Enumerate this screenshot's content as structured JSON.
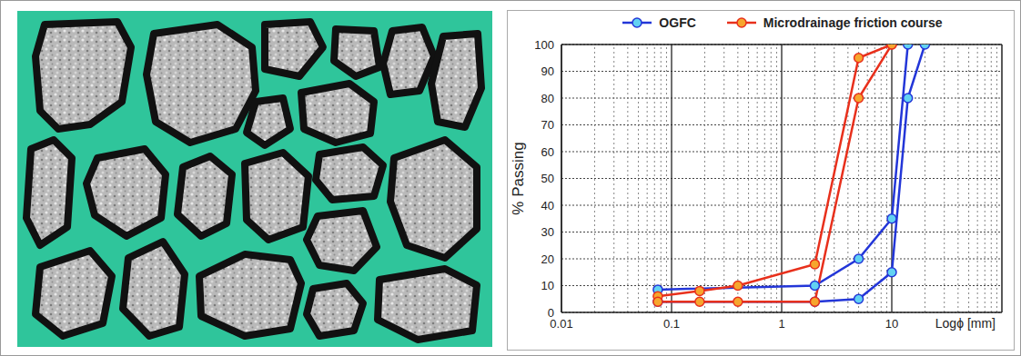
{
  "chart_data": {
    "type": "line",
    "y_label": "% Passing",
    "x_label": "Logϕ [mm]",
    "log": "x",
    "grid": true,
    "legend": "top",
    "xlim": [
      0.01,
      100
    ],
    "xticks": [
      0.01,
      0.1,
      1,
      10
    ],
    "ylim": [
      0,
      100
    ],
    "yticks": [
      0,
      10,
      20,
      30,
      40,
      50,
      60,
      70,
      80,
      90,
      100
    ],
    "series": [
      {
        "name": "OGFC",
        "color": "#2336d8",
        "marker": "circle",
        "curves": [
          {
            "x": [
              0.075,
              2,
              5,
              10,
              14
            ],
            "values": [
              8.5,
              10,
              20,
              35,
              100
            ]
          },
          {
            "x": [
              0.075,
              2,
              5,
              10,
              14,
              20
            ],
            "values": [
              4,
              4,
              5,
              15,
              80,
              100
            ]
          }
        ]
      },
      {
        "name": "Microdrainage friction course",
        "color": "#e8301c",
        "marker": "circle",
        "curves": [
          {
            "x": [
              0.075,
              0.18,
              0.4,
              2,
              5,
              10
            ],
            "values": [
              6,
              8,
              10,
              18,
              95,
              100
            ]
          },
          {
            "x": [
              0.075,
              0.18,
              0.4,
              2,
              5,
              10
            ],
            "values": [
              4,
              4,
              4,
              4,
              80,
              100
            ]
          }
        ]
      }
    ]
  }
}
